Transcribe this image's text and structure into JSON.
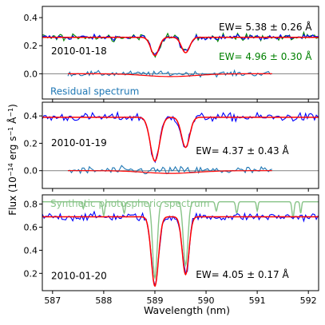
{
  "chart_data": {
    "type": "line",
    "xlabel": "Wavelength (nm)",
    "ylabel": "Flux (10$^{-14}$ erg s$^{-1}$ Å$^{-1}$)",
    "ylabel_parts": {
      "prefix": "Flux (10",
      "exp1": "−14",
      "mid": " erg s",
      "exp2": "−1",
      "mid2": " Å",
      "exp3": "−1",
      "suffix": ")"
    },
    "xlim": [
      586.8,
      592.2
    ],
    "x_ticks": [
      587,
      588,
      589,
      590,
      591,
      592
    ],
    "colors": {
      "observed": "#0000ff",
      "fit": "#ff0000",
      "residual": "#1f77b4",
      "second_obs": "#008000",
      "synthetic": "#88c488",
      "zero_line": "#808080"
    },
    "panels": [
      {
        "date": "2010-01-18",
        "ylim": [
          -0.18,
          0.48
        ],
        "y_ticks": [
          0.0,
          0.2,
          0.4
        ],
        "y_tick_labels": [
          "0.0",
          "0.2",
          "0.4"
        ],
        "continuum": 0.26,
        "line_depths": [
          0.13,
          0.11
        ],
        "line_centers": [
          589.0,
          589.6
        ],
        "line_widths": [
          0.08,
          0.08
        ],
        "noise": 0.018,
        "annotations": [
          {
            "text": "EW= 5.38 ±  0.26 Å",
            "color": "#000000",
            "x": 590.25,
            "y": 0.31
          },
          {
            "text": "EW= 4.96 ±  0.30 Å",
            "color": "#008000",
            "x": 590.25,
            "y": 0.1
          }
        ],
        "label_text": "Residual spectrum",
        "residual_range": [
          587.3,
          591.3
        ],
        "has_green": true
      },
      {
        "date": "2010-01-19",
        "ylim": [
          -0.13,
          0.5
        ],
        "y_ticks": [
          0.0,
          0.2,
          0.4
        ],
        "y_tick_labels": [
          "0.0",
          "0.2",
          "0.4"
        ],
        "continuum": 0.39,
        "line_depths": [
          0.32,
          0.22
        ],
        "line_centers": [
          589.0,
          589.6
        ],
        "line_widths": [
          0.09,
          0.08
        ],
        "noise": 0.03,
        "annotations": [
          {
            "text": "EW= 4.37 ±  0.43 Å",
            "color": "#000000",
            "x": 589.8,
            "y": 0.12
          }
        ],
        "residual_range": [
          587.3,
          591.3
        ]
      },
      {
        "date": "2010-01-20",
        "ylim": [
          0.05,
          0.88
        ],
        "y_ticks": [
          0.2,
          0.4,
          0.6,
          0.8
        ],
        "y_tick_labels": [
          "0.2",
          "0.4",
          "0.6",
          "0.8"
        ],
        "continuum": 0.69,
        "line_depths": [
          0.6,
          0.5
        ],
        "line_centers": [
          589.0,
          589.6
        ],
        "line_widths": [
          0.07,
          0.065
        ],
        "noise": 0.035,
        "annotations": [
          {
            "text": "EW= 4.05 ±  0.17 Å",
            "color": "#000000",
            "x": 589.8,
            "y": 0.16
          }
        ],
        "label_text": "Synthetic photospheric spectrum",
        "has_synthetic": true
      }
    ]
  }
}
